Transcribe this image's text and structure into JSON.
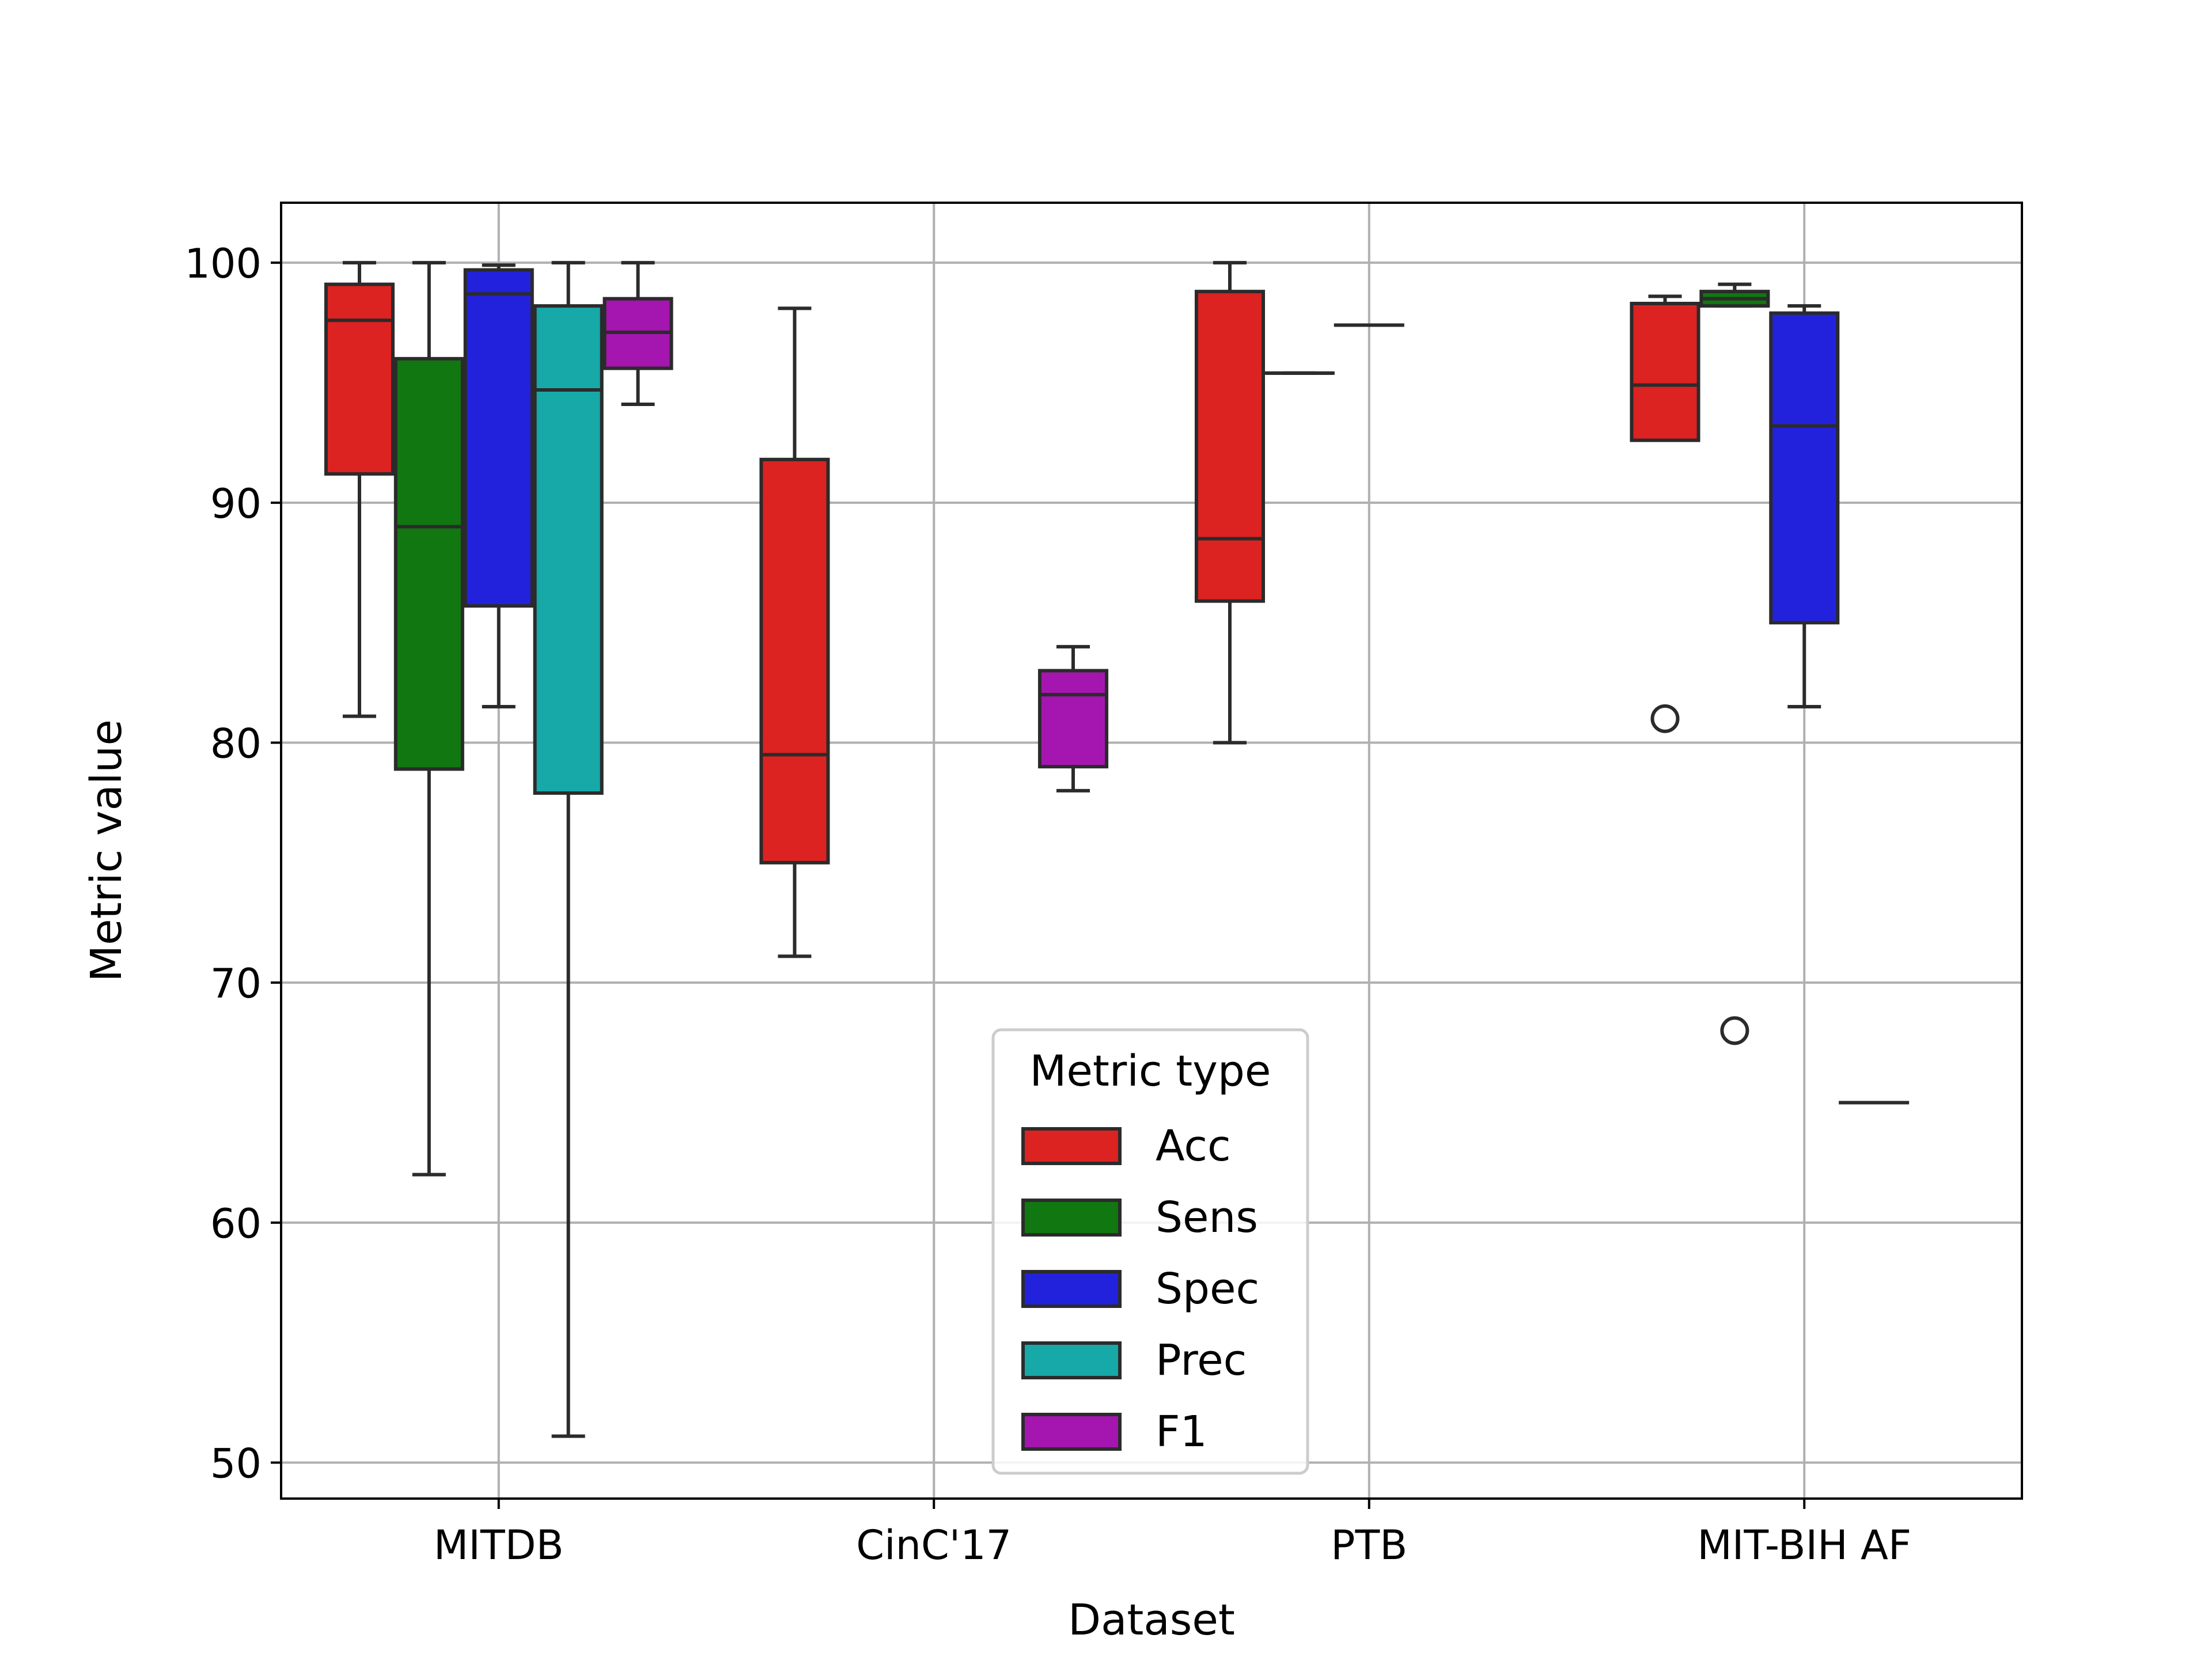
{
  "chart_data": {
    "type": "box",
    "title": "",
    "xlabel": "Dataset",
    "ylabel": "Metric value",
    "categories": [
      "MITDB",
      "CinC'17",
      "PTB",
      "MIT-BIH AF"
    ],
    "ylim": [
      48.5,
      102.5
    ],
    "yticks": [
      50,
      60,
      70,
      80,
      90,
      100
    ],
    "grid": true,
    "legend": {
      "title": "Metric type",
      "placement": "lower-center",
      "entries": [
        "Acc",
        "Sens",
        "Spec",
        "Prec",
        "F1"
      ]
    },
    "colors": {
      "Acc": "#dd2222",
      "Sens": "#117711",
      "Spec": "#2222dd",
      "Prec": "#17a8a8",
      "F1": "#a516b0",
      "outline": "#2b2b2b",
      "grid": "#b0b0b0"
    },
    "series": [
      {
        "name": "Acc",
        "boxes": [
          {
            "category": "MITDB",
            "whislo": 81.1,
            "q1": 91.2,
            "median": 97.6,
            "q3": 99.1,
            "whishi": 100.0,
            "fliers": []
          },
          {
            "category": "CinC'17",
            "whislo": 71.1,
            "q1": 75.0,
            "median": 79.5,
            "q3": 91.8,
            "whishi": 98.1,
            "fliers": []
          },
          {
            "category": "PTB",
            "whislo": 80.0,
            "q1": 85.9,
            "median": 88.5,
            "q3": 98.8,
            "whishi": 100.0,
            "fliers": []
          },
          {
            "category": "MIT-BIH AF",
            "whislo": 92.6,
            "q1": 92.6,
            "median": 94.9,
            "q3": 98.3,
            "whishi": 98.6,
            "fliers": [
              81.0
            ]
          }
        ]
      },
      {
        "name": "Sens",
        "boxes": [
          {
            "category": "MITDB",
            "whislo": 62.0,
            "q1": 78.9,
            "median": 89.0,
            "q3": 96.0,
            "whishi": 100.0,
            "fliers": []
          },
          {
            "category": "PTB",
            "whislo": 95.4,
            "q1": 95.4,
            "median": 95.4,
            "q3": 95.4,
            "whishi": 95.4,
            "fliers": []
          },
          {
            "category": "MIT-BIH AF",
            "whislo": 98.2,
            "q1": 98.2,
            "median": 98.5,
            "q3": 98.8,
            "whishi": 99.1,
            "fliers": [
              68.0
            ]
          }
        ]
      },
      {
        "name": "Spec",
        "boxes": [
          {
            "category": "MITDB",
            "whislo": 81.5,
            "q1": 85.7,
            "median": 98.7,
            "q3": 99.7,
            "whishi": 99.9,
            "fliers": []
          },
          {
            "category": "PTB",
            "whislo": 97.4,
            "q1": 97.4,
            "median": 97.4,
            "q3": 97.4,
            "whishi": 97.4,
            "fliers": []
          },
          {
            "category": "MIT-BIH AF",
            "whislo": 81.5,
            "q1": 85.0,
            "median": 93.2,
            "q3": 97.9,
            "whishi": 98.2,
            "fliers": []
          }
        ]
      },
      {
        "name": "Prec",
        "boxes": [
          {
            "category": "MITDB",
            "whislo": 51.1,
            "q1": 77.9,
            "median": 94.7,
            "q3": 98.2,
            "whishi": 100.0,
            "fliers": []
          },
          {
            "category": "MIT-BIH AF",
            "whislo": 65.0,
            "q1": 65.0,
            "median": 65.0,
            "q3": 65.0,
            "whishi": 65.0,
            "fliers": []
          }
        ]
      },
      {
        "name": "F1",
        "boxes": [
          {
            "category": "MITDB",
            "whislo": 94.1,
            "q1": 95.6,
            "median": 97.1,
            "q3": 98.5,
            "whishi": 100.0,
            "fliers": []
          },
          {
            "category": "CinC'17",
            "whislo": 78.0,
            "q1": 79.0,
            "median": 82.0,
            "q3": 83.0,
            "whishi": 84.0,
            "fliers": []
          }
        ]
      }
    ]
  }
}
